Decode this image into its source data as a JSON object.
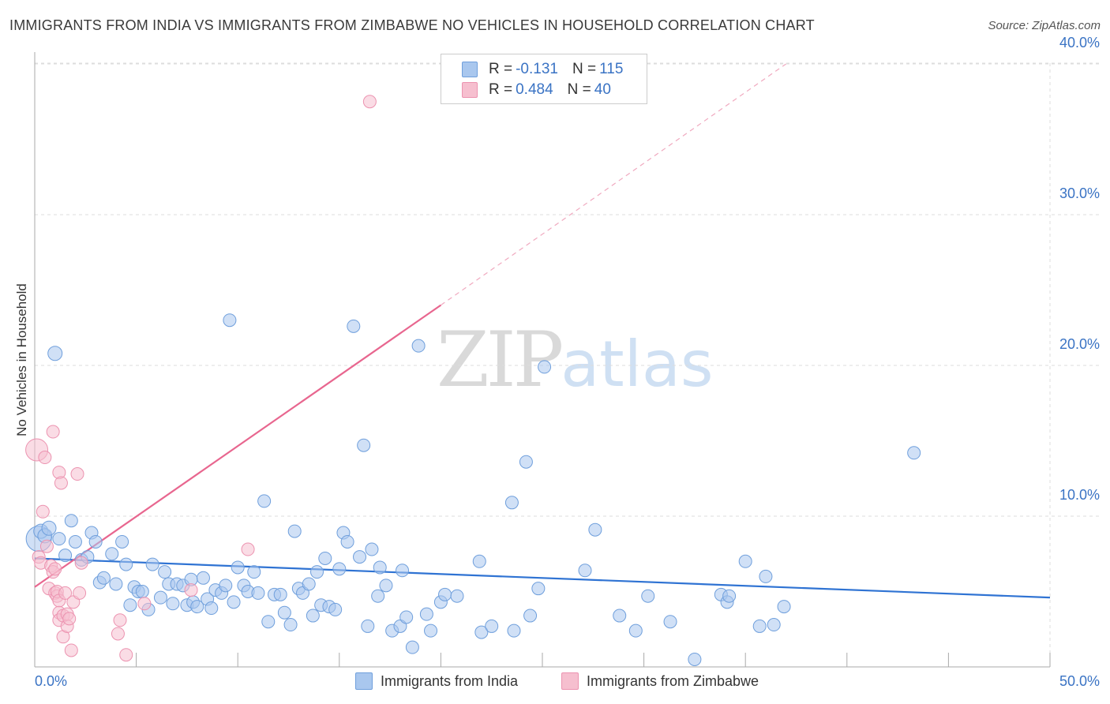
{
  "title": "IMMIGRANTS FROM INDIA VS IMMIGRANTS FROM ZIMBABWE NO VEHICLES IN HOUSEHOLD CORRELATION CHART",
  "source": "Source: ZipAtlas.com",
  "watermark": {
    "zip": "ZIP",
    "atlas": "atlas"
  },
  "legend_top": {
    "india": {
      "r_label": "R =",
      "r_value": "-0.131",
      "n_label": "N =",
      "n_value": "115"
    },
    "zimbabwe": {
      "r_label": "R =",
      "r_value": "0.484",
      "n_label": "N =",
      "n_value": "40"
    }
  },
  "colors": {
    "india_fill": "#a9c7ee",
    "india_stroke": "#6f9fdc",
    "india_line": "#2f73d3",
    "zim_fill": "#f6bfcf",
    "zim_stroke": "#ec93b0",
    "zim_line": "#e8668f",
    "tick": "#3a73c4",
    "grid": "#dddddd"
  },
  "chart_data": {
    "type": "scatter",
    "title": "IMMIGRANTS FROM INDIA VS IMMIGRANTS FROM ZIMBABWE NO VEHICLES IN HOUSEHOLD CORRELATION CHART",
    "xlabel": "",
    "ylabel": "No Vehicles in Household",
    "xlim": [
      0,
      50
    ],
    "ylim": [
      0,
      42
    ],
    "x_tick_labels": [
      "0.0%",
      "50.0%"
    ],
    "y_ticks": [
      10,
      20,
      30,
      40
    ],
    "y_tick_labels": [
      "10.0%",
      "20.0%",
      "30.0%",
      "40.0%"
    ],
    "grid": true,
    "legend": "bottom-center",
    "series": [
      {
        "name": "Immigrants from India",
        "r": -0.131,
        "n": 115,
        "trend": {
          "x0": 0,
          "y0": 7.2,
          "x1": 50,
          "y1": 4.6
        },
        "points": [
          [
            0.2,
            8.5,
            16
          ],
          [
            0.3,
            9.0,
            9
          ],
          [
            0.5,
            8.7,
            9
          ],
          [
            0.7,
            9.2,
            9
          ],
          [
            1.0,
            20.8,
            9
          ],
          [
            1.2,
            8.5,
            8
          ],
          [
            1.5,
            7.4,
            8
          ],
          [
            1.8,
            9.7,
            8
          ],
          [
            2.0,
            8.3,
            8
          ],
          [
            2.3,
            7.1,
            8
          ],
          [
            2.6,
            7.3,
            8
          ],
          [
            2.8,
            8.9,
            8
          ],
          [
            3.0,
            8.3,
            8
          ],
          [
            3.2,
            5.6,
            8
          ],
          [
            3.4,
            5.9,
            8
          ],
          [
            3.8,
            7.5,
            8
          ],
          [
            4.0,
            5.5,
            8
          ],
          [
            4.3,
            8.3,
            8
          ],
          [
            4.5,
            6.8,
            8
          ],
          [
            4.7,
            4.1,
            8
          ],
          [
            4.9,
            5.3,
            8
          ],
          [
            5.1,
            5.0,
            8
          ],
          [
            5.3,
            5.0,
            8
          ],
          [
            5.6,
            3.8,
            8
          ],
          [
            5.8,
            6.8,
            8
          ],
          [
            6.2,
            4.6,
            8
          ],
          [
            6.4,
            6.3,
            8
          ],
          [
            6.6,
            5.5,
            8
          ],
          [
            6.8,
            4.2,
            8
          ],
          [
            7.0,
            5.5,
            8
          ],
          [
            7.3,
            5.4,
            8
          ],
          [
            7.5,
            4.1,
            8
          ],
          [
            7.7,
            5.8,
            8
          ],
          [
            7.8,
            4.3,
            8
          ],
          [
            8.0,
            4.0,
            8
          ],
          [
            8.3,
            5.9,
            8
          ],
          [
            8.5,
            4.5,
            8
          ],
          [
            8.7,
            3.9,
            8
          ],
          [
            8.9,
            5.1,
            8
          ],
          [
            9.2,
            4.9,
            8
          ],
          [
            9.4,
            5.4,
            8
          ],
          [
            9.6,
            23.0,
            8
          ],
          [
            9.8,
            4.3,
            8
          ],
          [
            10.0,
            6.6,
            8
          ],
          [
            10.3,
            5.4,
            8
          ],
          [
            10.5,
            5.0,
            8
          ],
          [
            10.8,
            6.3,
            8
          ],
          [
            11.0,
            4.9,
            8
          ],
          [
            11.3,
            11.0,
            8
          ],
          [
            11.5,
            3.0,
            8
          ],
          [
            11.8,
            4.8,
            8
          ],
          [
            12.1,
            4.8,
            8
          ],
          [
            12.3,
            3.6,
            8
          ],
          [
            12.6,
            2.8,
            8
          ],
          [
            12.8,
            9.0,
            8
          ],
          [
            13.0,
            5.2,
            8
          ],
          [
            13.2,
            4.9,
            8
          ],
          [
            13.5,
            5.5,
            8
          ],
          [
            13.7,
            3.4,
            8
          ],
          [
            13.9,
            6.3,
            8
          ],
          [
            14.1,
            4.1,
            8
          ],
          [
            14.3,
            7.2,
            8
          ],
          [
            14.5,
            4.0,
            8
          ],
          [
            14.8,
            3.8,
            8
          ],
          [
            15.0,
            6.5,
            8
          ],
          [
            15.2,
            8.9,
            8
          ],
          [
            15.4,
            8.3,
            8
          ],
          [
            15.7,
            22.6,
            8
          ],
          [
            16.0,
            7.3,
            8
          ],
          [
            16.2,
            14.7,
            8
          ],
          [
            16.4,
            2.7,
            8
          ],
          [
            16.6,
            7.8,
            8
          ],
          [
            16.9,
            4.7,
            8
          ],
          [
            17.0,
            6.6,
            8
          ],
          [
            17.3,
            5.4,
            8
          ],
          [
            17.6,
            2.4,
            8
          ],
          [
            18.0,
            2.7,
            8
          ],
          [
            18.1,
            6.4,
            8
          ],
          [
            18.3,
            3.3,
            8
          ],
          [
            18.6,
            1.3,
            8
          ],
          [
            18.9,
            21.3,
            8
          ],
          [
            19.3,
            3.5,
            8
          ],
          [
            19.5,
            2.4,
            8
          ],
          [
            20.0,
            4.3,
            8
          ],
          [
            20.2,
            4.8,
            8
          ],
          [
            20.8,
            4.7,
            8
          ],
          [
            21.9,
            7.0,
            8
          ],
          [
            22.0,
            2.3,
            8
          ],
          [
            22.5,
            2.7,
            8
          ],
          [
            23.5,
            10.9,
            8
          ],
          [
            23.6,
            2.4,
            8
          ],
          [
            24.2,
            13.6,
            8
          ],
          [
            24.4,
            3.4,
            8
          ],
          [
            24.8,
            5.2,
            8
          ],
          [
            25.1,
            19.9,
            8
          ],
          [
            27.1,
            6.4,
            8
          ],
          [
            27.6,
            9.1,
            8
          ],
          [
            28.8,
            3.4,
            8
          ],
          [
            29.6,
            2.4,
            8
          ],
          [
            30.2,
            4.7,
            8
          ],
          [
            31.3,
            3.0,
            8
          ],
          [
            32.5,
            0.5,
            8
          ],
          [
            33.8,
            4.8,
            8
          ],
          [
            34.1,
            4.3,
            8
          ],
          [
            34.2,
            4.7,
            8
          ],
          [
            35.0,
            7.0,
            8
          ],
          [
            35.7,
            2.7,
            8
          ],
          [
            36.0,
            6.0,
            8
          ],
          [
            36.4,
            2.8,
            8
          ],
          [
            36.9,
            4.0,
            8
          ],
          [
            43.3,
            14.2,
            8
          ]
        ]
      },
      {
        "name": "Immigrants from Zimbabwe",
        "r": 0.484,
        "n": 40,
        "trend": {
          "x0": 0,
          "y0": 5.3,
          "x1": 20,
          "y1": 24.0
        },
        "trend_dashed": {
          "x0": 20,
          "y0": 24.0,
          "x1": 37,
          "y1": 40.0
        },
        "points": [
          [
            0.1,
            14.4,
            14
          ],
          [
            0.2,
            7.3,
            8
          ],
          [
            0.3,
            6.9,
            8
          ],
          [
            0.4,
            10.3,
            8
          ],
          [
            0.5,
            13.9,
            8
          ],
          [
            0.6,
            8.0,
            8
          ],
          [
            0.7,
            5.2,
            8
          ],
          [
            0.8,
            6.7,
            8
          ],
          [
            0.9,
            6.3,
            8
          ],
          [
            0.9,
            15.6,
            8
          ],
          [
            1.0,
            4.9,
            8
          ],
          [
            1.0,
            6.5,
            8
          ],
          [
            1.1,
            4.7,
            8
          ],
          [
            1.1,
            5.0,
            8
          ],
          [
            1.2,
            4.4,
            8
          ],
          [
            1.2,
            3.6,
            8
          ],
          [
            1.2,
            3.1,
            8
          ],
          [
            1.2,
            12.9,
            8
          ],
          [
            1.3,
            12.2,
            8
          ],
          [
            1.4,
            3.4,
            8
          ],
          [
            1.4,
            2.0,
            8
          ],
          [
            1.5,
            4.9,
            8
          ],
          [
            1.6,
            2.7,
            8
          ],
          [
            1.6,
            3.5,
            8
          ],
          [
            1.7,
            3.2,
            8
          ],
          [
            1.8,
            1.1,
            8
          ],
          [
            1.9,
            4.3,
            8
          ],
          [
            2.1,
            12.8,
            8
          ],
          [
            2.2,
            4.9,
            8
          ],
          [
            2.3,
            6.9,
            8
          ],
          [
            4.1,
            2.2,
            8
          ],
          [
            4.2,
            3.1,
            8
          ],
          [
            4.5,
            0.8,
            8
          ],
          [
            5.4,
            4.2,
            8
          ],
          [
            7.7,
            5.1,
            8
          ],
          [
            10.5,
            7.8,
            8
          ],
          [
            16.5,
            37.5,
            8
          ]
        ]
      }
    ]
  },
  "legend_bottom": {
    "india": "Immigrants from India",
    "zimbabwe": "Immigrants from Zimbabwe"
  }
}
